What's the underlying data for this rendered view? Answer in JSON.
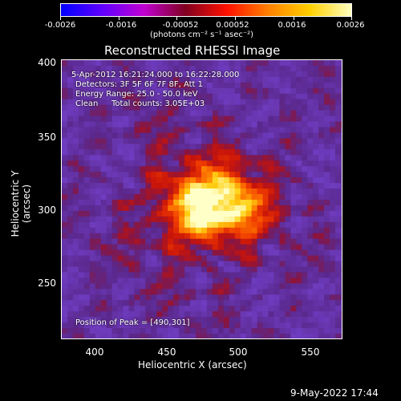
{
  "colorbar": {
    "tick_labels": [
      "-0.0026",
      "-0.0016",
      "-0.00052",
      "0.00052",
      "0.0016",
      "0.0026"
    ],
    "units": "(photons cm⁻² s⁻¹ asec⁻²)",
    "colors": [
      "#0000ff",
      "#6000ff",
      "#c000d0",
      "#800020",
      "#ff1000",
      "#ff8000",
      "#ffd000",
      "#ffffc0"
    ]
  },
  "plot": {
    "title": "Reconstructed RHESSI Image",
    "xlabel": "Heliocentric X (arcsec)",
    "ylabel": "Heliocentric Y (arcsec)",
    "xticks": [
      "400",
      "450",
      "500",
      "550"
    ],
    "yticks": [
      "400",
      "350",
      "300",
      "250"
    ],
    "info": {
      "time_range": "5-Apr-2012 16:21:24.000 to 16:22:28.000",
      "detectors": "Detectors: 3F 5F 6F 7F 8F, Att 1",
      "energy": "Energy Range: 25.0 - 50.0 keV",
      "algorithm": "Clean",
      "counts": "Total counts: 3.05E+03"
    },
    "peak": "Position of Peak = [490,301]"
  },
  "footer": {
    "timestamp": "9-May-2022 17:44"
  }
}
